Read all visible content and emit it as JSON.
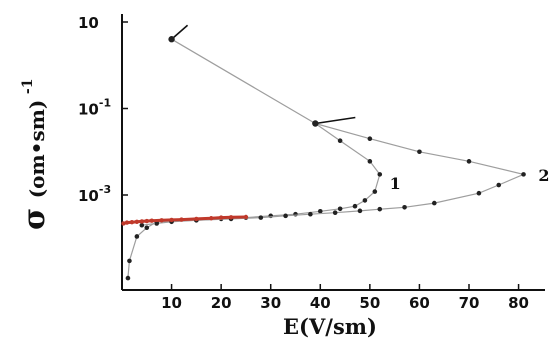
{
  "chart_data": {
    "type": "line",
    "x_axis": {
      "label": "E(V/sm)",
      "range": [
        0,
        88
      ],
      "ticks": [
        "10",
        "20",
        "30",
        "40",
        "50",
        "60",
        "70",
        "80"
      ]
    },
    "y_axis": {
      "label_symbol": "σ",
      "label_unit": "(om•sm)",
      "label_exponent": "-1",
      "scale": "log",
      "ticks": [
        {
          "base": "10",
          "exp": ""
        },
        {
          "base": "10",
          "exp": "-1"
        },
        {
          "base": "10",
          "exp": "-3"
        }
      ]
    },
    "grid": false,
    "legend": "none",
    "series": [
      {
        "name": "1",
        "color": "#9e9e9e",
        "marker_color": "#222222",
        "points": [
          [
            10,
            4.0
          ],
          [
            39,
            0.045
          ],
          [
            44,
            0.018
          ],
          [
            50,
            0.006
          ],
          [
            52,
            0.003
          ],
          [
            51,
            0.0012
          ],
          [
            49,
            0.00075
          ],
          [
            47,
            0.00055
          ],
          [
            44,
            0.00048
          ],
          [
            40,
            0.00042
          ],
          [
            35,
            0.00036
          ],
          [
            30,
            0.00033
          ],
          [
            25,
            0.0003
          ],
          [
            20,
            0.00028
          ],
          [
            15,
            0.00026
          ],
          [
            10,
            0.00024
          ],
          [
            7,
            0.00022
          ],
          [
            4,
            0.0002
          ]
        ]
      },
      {
        "name": "2",
        "color": "#9e9e9e",
        "marker_color": "#222222",
        "points": [
          [
            39,
            0.045
          ],
          [
            50,
            0.02
          ],
          [
            60,
            0.01
          ],
          [
            70,
            0.006
          ],
          [
            81,
            0.003
          ],
          [
            76,
            0.0017
          ],
          [
            72,
            0.0011
          ],
          [
            63,
            0.00065
          ],
          [
            57,
            0.00052
          ],
          [
            52,
            0.00047
          ],
          [
            48,
            0.00043
          ],
          [
            43,
            0.00039
          ],
          [
            38,
            0.00036
          ],
          [
            33,
            0.00033
          ],
          [
            28,
            0.0003
          ],
          [
            22,
            0.00028
          ],
          [
            15,
            0.00026
          ],
          [
            10,
            0.00025
          ],
          [
            7,
            0.00024
          ],
          [
            5,
            0.000175
          ],
          [
            3,
            0.00011
          ],
          [
            1.5,
            3e-05
          ],
          [
            1.2,
            1.2e-05
          ]
        ]
      },
      {
        "name": "",
        "color": "#c0392b",
        "marker_color": "#c0392b",
        "points": [
          [
            0.3,
            0.00022
          ],
          [
            1,
            0.00023
          ],
          [
            2,
            0.000235
          ],
          [
            3,
            0.00024
          ],
          [
            4,
            0.000245
          ],
          [
            5,
            0.00025
          ],
          [
            6,
            0.000255
          ],
          [
            8,
            0.00026
          ],
          [
            10,
            0.000265
          ],
          [
            12,
            0.00027
          ],
          [
            15,
            0.00028
          ],
          [
            18,
            0.00029
          ],
          [
            20,
            0.0003
          ],
          [
            22,
            0.000305
          ],
          [
            25,
            0.00031
          ]
        ]
      }
    ],
    "annotations": [
      {
        "text": "1",
        "x": 54,
        "y": 0.0019
      },
      {
        "text": "2",
        "x": 84,
        "y": 0.0029
      }
    ],
    "arrows": [
      {
        "at": [
          10,
          4.0
        ],
        "direction": "up-right"
      },
      {
        "at": [
          39,
          0.045
        ],
        "direction": "right"
      }
    ]
  }
}
